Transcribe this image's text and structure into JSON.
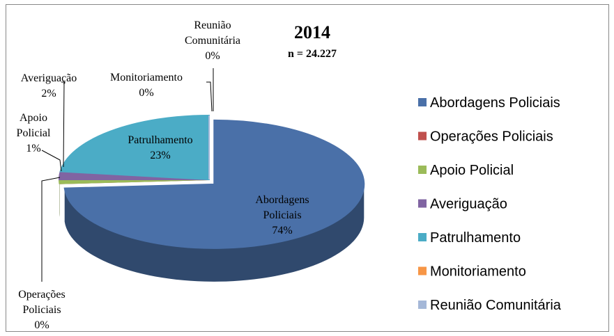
{
  "chart_data": {
    "type": "pie",
    "title": "2014",
    "subtitle": "n = 24.227",
    "categories": [
      "Abordagens Policiais",
      "Operações Policiais",
      "Apoio Policial",
      "Averiguação",
      "Patrulhamento",
      "Monitoriamento",
      "Reunião Comunitária"
    ],
    "values": [
      74,
      0,
      1,
      2,
      23,
      0,
      0
    ],
    "value_labels": [
      "74%",
      "0%",
      "1%",
      "2%",
      "23%",
      "0%",
      "0%"
    ],
    "colors": [
      "#4a70a8",
      "#c0504d",
      "#9bbb59",
      "#8064a2",
      "#4bacc6",
      "#f79646",
      "#a5b8d8"
    ],
    "legend": "right"
  }
}
